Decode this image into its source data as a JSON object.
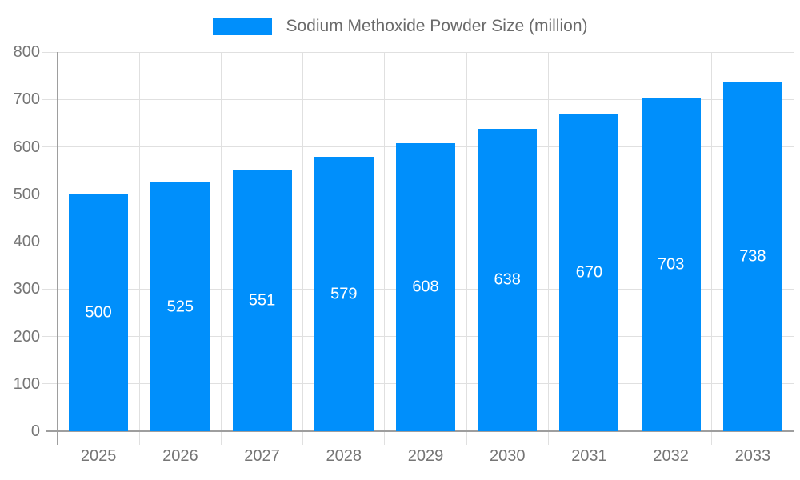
{
  "chart_data": {
    "type": "bar",
    "title": "Sodium Methoxide Powder Size (million)",
    "legend": [
      "Sodium Methoxide Powder Size (million)"
    ],
    "legend_position": "top",
    "categories": [
      "2025",
      "2026",
      "2027",
      "2028",
      "2029",
      "2030",
      "2031",
      "2032",
      "2033"
    ],
    "values": [
      500,
      525,
      551,
      579,
      608,
      638,
      670,
      703,
      738
    ],
    "xlabel": "",
    "ylabel": "",
    "ylim": [
      0,
      800
    ],
    "yticks": [
      0,
      100,
      200,
      300,
      400,
      500,
      600,
      700,
      800
    ],
    "grid": true,
    "bar_color": "#008ffb",
    "value_label_color": "#ffffff",
    "grid_color": "#e0e0e0",
    "axis_color": "#9e9e9e",
    "tick_label_color": "#757575",
    "legend_text_color": "#6b6b6b"
  }
}
